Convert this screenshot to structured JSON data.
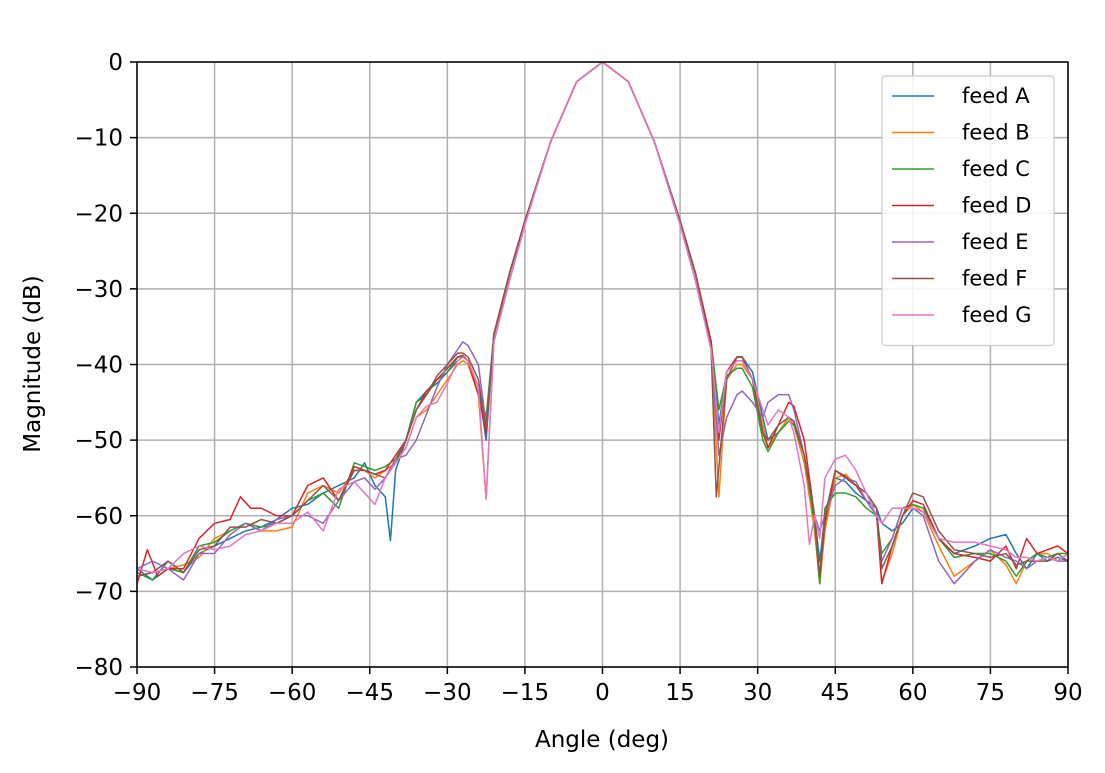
{
  "chart_data": {
    "type": "line",
    "title": "",
    "xlabel": "Angle (deg)",
    "ylabel": "Magnitude (dB)",
    "xlim": [
      -90,
      90
    ],
    "ylim": [
      -80,
      0
    ],
    "xticks": [
      -90,
      -75,
      -60,
      -45,
      -30,
      -15,
      0,
      15,
      30,
      45,
      60,
      75,
      90
    ],
    "yticks": [
      0,
      -10,
      -20,
      -30,
      -40,
      -50,
      -60,
      -70,
      -80
    ],
    "xtick_labels": [
      "−90",
      "−75",
      "−60",
      "−45",
      "−30",
      "−15",
      "0",
      "15",
      "30",
      "45",
      "60",
      "75",
      "90"
    ],
    "ytick_labels": [
      "0",
      "−10",
      "−20",
      "−30",
      "−40",
      "−50",
      "−60",
      "−70",
      "−80"
    ],
    "grid": true,
    "legend_position": "top-right",
    "series": [
      {
        "name": "feed A",
        "color": "#1f77b4",
        "x": [
          -90,
          -87,
          -84,
          -81,
          -78,
          -75,
          -72,
          -69,
          -66,
          -63,
          -60,
          -57,
          -54,
          -51,
          -48,
          -46,
          -44,
          -42,
          -41,
          -40,
          -38,
          -36,
          -34,
          -32,
          -30,
          -28,
          -27,
          -26,
          -24,
          -22.5,
          -21,
          -18,
          -15,
          -10,
          -5,
          0,
          5,
          10,
          15,
          18,
          21,
          22.5,
          24,
          26,
          27,
          29,
          31,
          32,
          34,
          36,
          37,
          39,
          41,
          42,
          43,
          45,
          47,
          49,
          51,
          53,
          54,
          56,
          58,
          60,
          62,
          65,
          68,
          72,
          75,
          78,
          80,
          82,
          84,
          86,
          88,
          90
        ],
        "y": [
          -67,
          -68.5,
          -66,
          -67.5,
          -65,
          -64,
          -63,
          -62,
          -61.5,
          -60.5,
          -59,
          -58.5,
          -57,
          -56,
          -55,
          -53,
          -56,
          -57.5,
          -63.3,
          -54,
          -50,
          -45,
          -43.5,
          -42.5,
          -41,
          -39.5,
          -39,
          -39.5,
          -43,
          -50,
          -36,
          -28,
          -21,
          -10.5,
          -2.6,
          0,
          -2.6,
          -10.5,
          -21,
          -28,
          -37,
          -48,
          -41,
          -39,
          -39,
          -41,
          -47,
          -50,
          -49,
          -47,
          -47.5,
          -52,
          -60,
          -66,
          -60,
          -55,
          -55.5,
          -57,
          -58,
          -59,
          -61,
          -62,
          -61,
          -59,
          -59.5,
          -63,
          -65,
          -64,
          -63,
          -62.5,
          -65,
          -67,
          -65,
          -66,
          -65.5,
          -66
        ]
      },
      {
        "name": "feed B",
        "color": "#ff7f0e",
        "x": [
          -90,
          -87,
          -84,
          -81,
          -78,
          -75,
          -72,
          -69,
          -66,
          -63,
          -60,
          -57,
          -54,
          -51,
          -48,
          -46,
          -44,
          -42,
          -41,
          -40,
          -38,
          -36,
          -34,
          -32,
          -30,
          -28,
          -27,
          -26,
          -24,
          -22.5,
          -21,
          -18,
          -15,
          -10,
          -5,
          0,
          5,
          10,
          15,
          18,
          21,
          22.5,
          24,
          26,
          27,
          29,
          31,
          32,
          34,
          36,
          37,
          39,
          41,
          42,
          43,
          45,
          47,
          49,
          51,
          53,
          54,
          56,
          58,
          60,
          62,
          65,
          68,
          72,
          75,
          78,
          80,
          82,
          84,
          86,
          88,
          90
        ],
        "y": [
          -68,
          -67.5,
          -67,
          -66.5,
          -65.5,
          -63,
          -62,
          -61,
          -62,
          -62,
          -61.5,
          -57,
          -56,
          -57,
          -54,
          -54,
          -55,
          -54,
          -53.5,
          -53,
          -51,
          -47,
          -46,
          -44,
          -42,
          -40,
          -39.5,
          -40,
          -44,
          -57.8,
          -37,
          -28,
          -21,
          -10.5,
          -2.6,
          0,
          -2.6,
          -10.5,
          -21,
          -28,
          -38,
          -57.5,
          -42,
          -40,
          -40,
          -42,
          -48,
          -51,
          -49,
          -47,
          -48,
          -53,
          -62,
          -69,
          -62,
          -55,
          -54.5,
          -56,
          -57,
          -59,
          -68.8,
          -65,
          -60,
          -58.5,
          -59.5,
          -64,
          -68,
          -66,
          -64.5,
          -66.5,
          -69,
          -66,
          -65,
          -65,
          -66,
          -65
        ]
      },
      {
        "name": "feed C",
        "color": "#2ca02c",
        "x": [
          -90,
          -87,
          -84,
          -81,
          -78,
          -75,
          -72,
          -69,
          -66,
          -63,
          -60,
          -57,
          -54,
          -51,
          -48,
          -46,
          -44,
          -42,
          -41,
          -40,
          -38,
          -36,
          -34,
          -32,
          -30,
          -28,
          -27,
          -26,
          -24,
          -22.5,
          -21,
          -18,
          -15,
          -10,
          -5,
          0,
          5,
          10,
          15,
          18,
          21,
          22.5,
          24,
          26,
          27,
          29,
          31,
          32,
          34,
          36,
          37,
          39,
          41,
          42,
          43,
          45,
          47,
          49,
          51,
          53,
          54,
          56,
          58,
          60,
          62,
          65,
          68,
          72,
          75,
          78,
          80,
          82,
          84,
          86,
          88,
          90
        ],
        "y": [
          -67.5,
          -68.5,
          -67,
          -67.5,
          -64,
          -63.5,
          -62,
          -61,
          -61.5,
          -61,
          -60,
          -58,
          -57,
          -59,
          -53,
          -53.5,
          -54,
          -53.5,
          -53,
          -52.5,
          -50,
          -45,
          -44,
          -42,
          -41,
          -39,
          -39,
          -39.5,
          -43,
          -47,
          -36,
          -28,
          -21,
          -10.5,
          -2.6,
          0,
          -2.6,
          -10.5,
          -21,
          -28,
          -37,
          -46,
          -41.5,
          -40.5,
          -40.5,
          -43,
          -50,
          -51.5,
          -49,
          -47.5,
          -48,
          -52,
          -61,
          -69,
          -59,
          -57,
          -57,
          -57.5,
          -59,
          -60,
          -65,
          -63,
          -59,
          -58.5,
          -59,
          -63,
          -65.5,
          -65,
          -65,
          -66,
          -68,
          -66,
          -65,
          -65.5,
          -65,
          -65
        ]
      },
      {
        "name": "feed D",
        "color": "#d62728",
        "x": [
          -90,
          -88,
          -86,
          -84,
          -81,
          -78,
          -75,
          -72,
          -70,
          -68,
          -66,
          -63,
          -60,
          -57,
          -54,
          -51,
          -48,
          -46,
          -44,
          -42,
          -40,
          -38,
          -36,
          -34,
          -32,
          -30,
          -28,
          -27,
          -26,
          -24,
          -22.5,
          -21,
          -18,
          -15,
          -10,
          -5,
          0,
          5,
          10,
          15,
          18,
          21,
          22.5,
          24,
          26,
          27,
          29,
          31,
          32,
          34,
          36,
          37,
          39,
          41,
          42,
          43,
          45,
          47,
          49,
          51,
          53,
          54,
          56,
          58,
          60,
          62,
          65,
          68,
          72,
          75,
          78,
          80,
          82,
          84,
          86,
          88,
          90
        ],
        "y": [
          -69,
          -64.5,
          -68,
          -67,
          -67,
          -63,
          -61,
          -60.5,
          -57.5,
          -59,
          -59,
          -60,
          -60,
          -56,
          -55,
          -58,
          -53.5,
          -54,
          -54.5,
          -54,
          -52,
          -50,
          -46,
          -43.5,
          -42,
          -40.5,
          -39,
          -38.8,
          -39.5,
          -44,
          -49,
          -36,
          -28,
          -21,
          -10.5,
          -2.6,
          0,
          -2.6,
          -10.5,
          -21,
          -28,
          -37,
          -50,
          -41,
          -39,
          -39,
          -42,
          -49,
          -51,
          -48,
          -45,
          -45.5,
          -50,
          -60,
          -68,
          -61,
          -54,
          -55,
          -56,
          -58,
          -60,
          -69,
          -64,
          -60,
          -58,
          -58.5,
          -63,
          -65,
          -65.5,
          -66,
          -64,
          -67,
          -63,
          -65,
          -64.5,
          -64,
          -65
        ]
      },
      {
        "name": "feed E",
        "color": "#9467bd",
        "x": [
          -90,
          -87,
          -84,
          -81,
          -78,
          -75,
          -72,
          -69,
          -66,
          -63,
          -60,
          -57,
          -54,
          -51,
          -48,
          -46,
          -44,
          -42,
          -40,
          -38,
          -36,
          -34,
          -32,
          -30,
          -28,
          -27,
          -26,
          -24,
          -22.5,
          -21,
          -18,
          -15,
          -10,
          -5,
          0,
          5,
          10,
          15,
          18,
          21,
          22.5,
          24,
          26,
          27,
          29,
          31,
          32,
          34,
          36,
          37,
          39,
          41,
          42,
          43,
          45,
          47,
          49,
          51,
          53,
          54,
          56,
          58,
          60,
          62,
          65,
          68,
          72,
          75,
          78,
          80,
          82,
          84,
          86,
          88,
          90
        ],
        "y": [
          -67,
          -66,
          -67,
          -68.5,
          -65,
          -65,
          -62.5,
          -61,
          -62,
          -60.5,
          -60,
          -60,
          -61,
          -58,
          -55.5,
          -55,
          -56.5,
          -55,
          -52.5,
          -52,
          -50,
          -46.5,
          -43,
          -40,
          -38,
          -37,
          -37.5,
          -40,
          -48,
          -37,
          -29,
          -21.5,
          -10.5,
          -2.6,
          0,
          -2.6,
          -10.5,
          -21.5,
          -29,
          -38,
          -52,
          -47,
          -44,
          -43.5,
          -45,
          -47,
          -45,
          -44,
          -44,
          -46,
          -52,
          -60,
          -62,
          -60,
          -56,
          -55,
          -55.5,
          -58,
          -60,
          -66,
          -63,
          -59,
          -59,
          -60,
          -66,
          -69,
          -66,
          -64.5,
          -65.5,
          -66,
          -67,
          -66,
          -65.5,
          -66,
          -66
        ]
      },
      {
        "name": "feed F",
        "color": "#8c564b",
        "x": [
          -90,
          -87,
          -84,
          -81,
          -78,
          -75,
          -72,
          -69,
          -66,
          -63,
          -60,
          -57,
          -54,
          -51,
          -48,
          -46,
          -44,
          -42,
          -40,
          -38,
          -36,
          -34,
          -32,
          -30,
          -28,
          -27,
          -26,
          -24,
          -22.5,
          -21,
          -18,
          -15,
          -10,
          -5,
          0,
          5,
          10,
          15,
          18,
          21,
          22,
          24,
          26,
          27,
          29,
          31,
          32,
          34,
          36,
          37,
          39,
          41,
          42,
          43,
          45,
          47,
          49,
          51,
          53,
          54,
          56,
          58,
          60,
          62,
          65,
          68,
          72,
          75,
          78,
          80,
          82,
          84,
          86,
          88,
          90
        ],
        "y": [
          -68,
          -67.5,
          -66,
          -67.5,
          -64.5,
          -64,
          -61.5,
          -61.5,
          -60.5,
          -61,
          -60,
          -58,
          -56,
          -58,
          -54,
          -54,
          -54.5,
          -55,
          -53,
          -50,
          -46,
          -44,
          -41.5,
          -40,
          -38.5,
          -38.5,
          -39,
          -42,
          -48.5,
          -36,
          -28,
          -21,
          -10.5,
          -2.6,
          0,
          -2.6,
          -10.5,
          -21,
          -28,
          -38,
          -57.5,
          -42,
          -39,
          -39,
          -42,
          -49,
          -50,
          -48,
          -47,
          -47.5,
          -52,
          -60,
          -68,
          -60,
          -54,
          -54.8,
          -56,
          -57,
          -59,
          -67,
          -64,
          -60,
          -57,
          -57.5,
          -62,
          -64.5,
          -65,
          -65.5,
          -65,
          -66.5,
          -66,
          -66,
          -66,
          -65,
          -66
        ]
      },
      {
        "name": "feed G",
        "color": "#e377c2",
        "x": [
          -90,
          -87,
          -84,
          -81,
          -78,
          -75,
          -72,
          -69,
          -66,
          -63,
          -60,
          -57,
          -54,
          -51,
          -48,
          -46,
          -44,
          -42,
          -40,
          -38,
          -36,
          -34,
          -32,
          -30,
          -28,
          -27,
          -26,
          -24,
          -22.5,
          -21,
          -18,
          -15,
          -10,
          -5,
          0,
          5,
          10,
          15,
          18,
          21,
          22.5,
          24,
          26,
          27,
          29,
          31,
          32,
          34,
          36,
          37,
          39,
          40,
          41,
          42,
          43,
          45,
          47,
          49,
          51,
          53,
          54,
          56,
          58,
          60,
          62,
          65,
          68,
          72,
          75,
          78,
          80,
          82,
          84,
          86,
          88,
          90
        ],
        "y": [
          -67,
          -67.5,
          -67,
          -65,
          -64,
          -64.5,
          -64,
          -62.5,
          -62,
          -61,
          -61,
          -59.5,
          -62,
          -56.5,
          -55.5,
          -57,
          -58.5,
          -55,
          -53,
          -51,
          -47,
          -45.5,
          -45,
          -42.5,
          -39.5,
          -39,
          -39.5,
          -43,
          -57.8,
          -37,
          -29,
          -21.5,
          -10.5,
          -2.6,
          0,
          -2.6,
          -10.5,
          -21.5,
          -29,
          -38,
          -49,
          -41,
          -39.5,
          -39.5,
          -42,
          -46,
          -48,
          -46,
          -47,
          -49,
          -56,
          -63.8,
          -60,
          -63,
          -55,
          -52.5,
          -52,
          -54,
          -57,
          -60,
          -61,
          -59,
          -59,
          -59,
          -59.5,
          -63,
          -63.5,
          -63.5,
          -64,
          -64.5,
          -65.5,
          -65.5,
          -66,
          -65.5,
          -66,
          -65
        ]
      }
    ]
  }
}
